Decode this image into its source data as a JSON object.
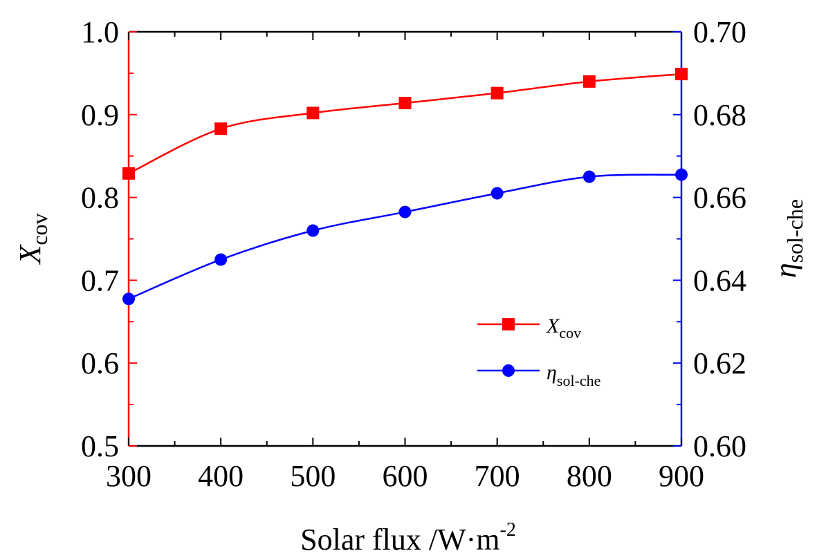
{
  "chart_data": {
    "type": "line",
    "x": [
      300,
      400,
      500,
      600,
      700,
      800,
      900
    ],
    "xlim": [
      300,
      900
    ],
    "x_ticks": [
      300,
      400,
      500,
      600,
      700,
      800,
      900
    ],
    "xlabel": "Solar flux /W·m",
    "xlabel_sup": "-2",
    "y_left": {
      "label_main": "X",
      "label_sub": "cov",
      "lim": [
        0.5,
        1.0
      ],
      "ticks": [
        "0.5",
        "0.6",
        "0.7",
        "0.8",
        "0.9",
        "1.0"
      ],
      "color": "#ff0000"
    },
    "y_right": {
      "label_main": "η",
      "label_sub": "sol-che",
      "lim": [
        0.6,
        0.7
      ],
      "ticks": [
        "0.60",
        "0.62",
        "0.64",
        "0.66",
        "0.68",
        "0.70"
      ],
      "color": "#0000ff"
    },
    "series": [
      {
        "name_main": "X",
        "name_sub": "cov",
        "axis": "left",
        "marker": "square",
        "color": "#ff0000",
        "values": [
          0.829,
          0.883,
          0.902,
          0.914,
          0.926,
          0.94,
          0.949
        ]
      },
      {
        "name_main": "η",
        "name_sub": "sol-che",
        "axis": "right",
        "marker": "circle",
        "color": "#0000ff",
        "values": [
          0.6355,
          0.645,
          0.652,
          0.6565,
          0.661,
          0.665,
          0.6655
        ]
      }
    ],
    "legend_position": "lower-right"
  }
}
